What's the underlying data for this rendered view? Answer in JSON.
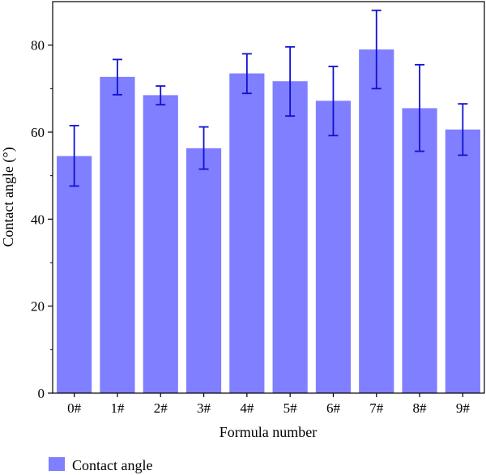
{
  "chart_data": {
    "type": "bar",
    "title": "",
    "xlabel": "Formula number",
    "ylabel": "Contact angle (°)",
    "categories": [
      "0#",
      "1#",
      "2#",
      "3#",
      "4#",
      "5#",
      "6#",
      "7#",
      "8#",
      "9#"
    ],
    "series": [
      {
        "name": "Contact angle",
        "values": [
          54.5,
          72.7,
          68.5,
          56.3,
          73.5,
          71.7,
          67.2,
          79.0,
          65.5,
          60.6
        ],
        "error_low": [
          47.6,
          68.6,
          66.3,
          51.5,
          68.9,
          63.7,
          59.2,
          70.0,
          55.6,
          54.7
        ],
        "error_high": [
          61.5,
          76.7,
          70.6,
          61.2,
          78.0,
          79.6,
          75.1,
          88.0,
          75.5,
          66.5
        ],
        "color": "#7f7fff",
        "error_color": "#1010d0"
      }
    ],
    "ylim": [
      0,
      90
    ],
    "yticks": [
      0,
      20,
      40,
      60,
      80
    ],
    "yticks_minor": [
      10,
      30,
      50,
      70
    ],
    "grid": false,
    "legend": {
      "position": "bottom-left",
      "entries": [
        "Contact angle"
      ]
    }
  }
}
